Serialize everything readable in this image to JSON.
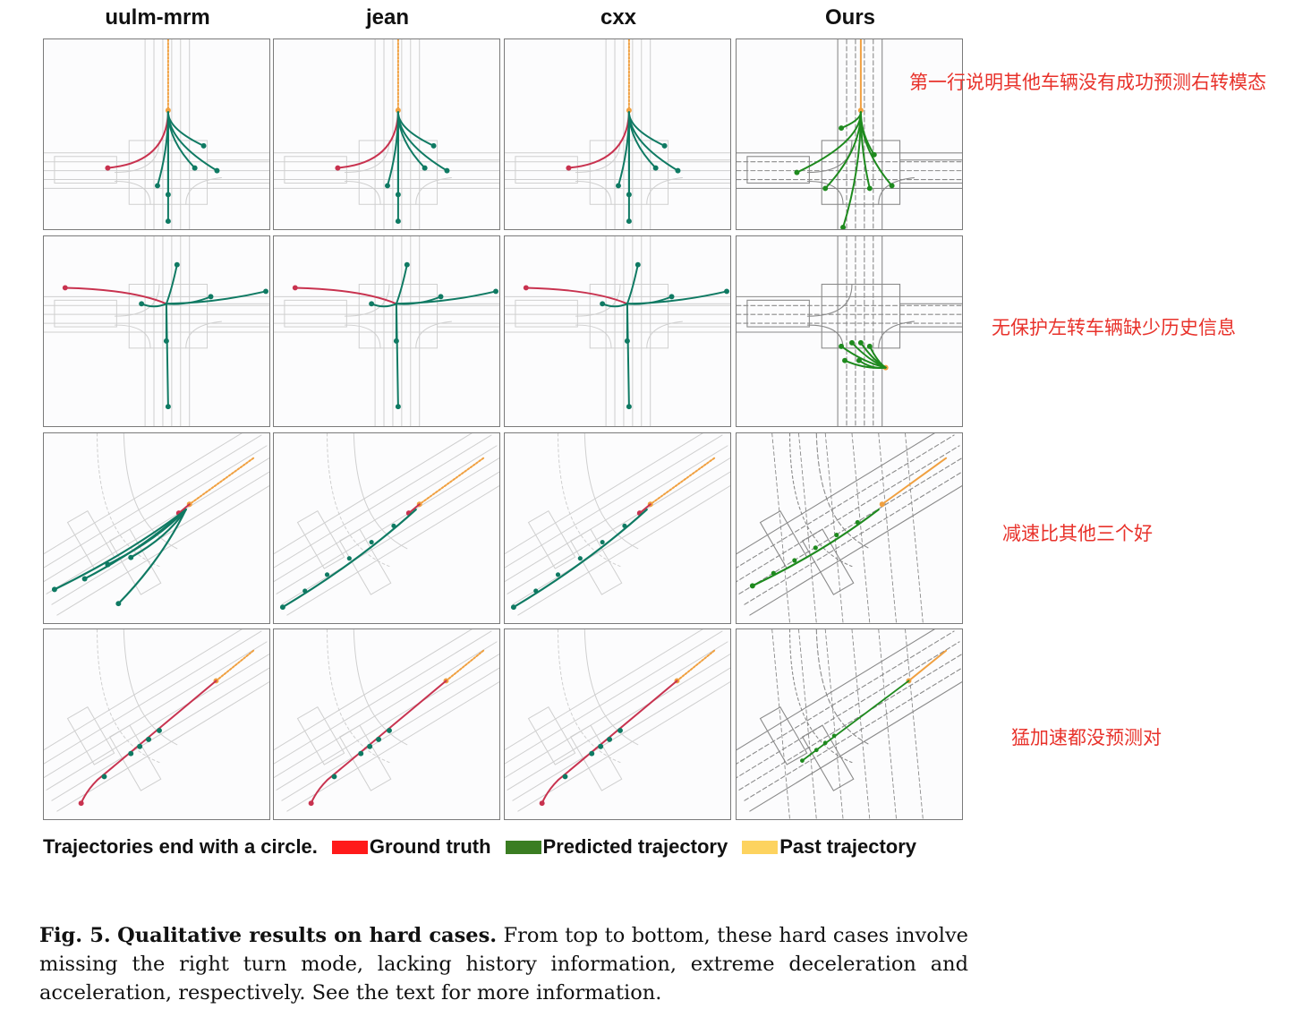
{
  "columns": [
    "uulm-mrm",
    "jean",
    "cxx",
    "Ours"
  ],
  "row_notes": [
    "第一行说明其他车辆没有成功预测右转模态",
    "无保护左转车辆缺少历史信息",
    "减速比其他三个好",
    "猛加速都没预测对"
  ],
  "legend": {
    "intro": "Trajectories end with a circle.",
    "items": [
      {
        "label": "Ground truth",
        "color": "#ff1a1a"
      },
      {
        "label": "Predicted trajectory",
        "color": "#3a7d22"
      },
      {
        "label": "Past trajectory",
        "color": "#fdd35f"
      }
    ]
  },
  "caption": {
    "label": "Fig. 5.",
    "title": "Qualitative results on hard cases.",
    "body": "From top to bottom, these hard cases involve missing the right turn mode, lacking history information, extreme deceleration and acceleration, respectively. See the text for more information."
  },
  "colors": {
    "ground_truth": "#c8324f",
    "prediction_baseline": "#0f7a63",
    "prediction_ours": "#1e8a1e",
    "past": "#f0a040",
    "map_baseline": "#cfcfcf",
    "map_ours": "#8a8a8a",
    "note": "#e8322b"
  }
}
